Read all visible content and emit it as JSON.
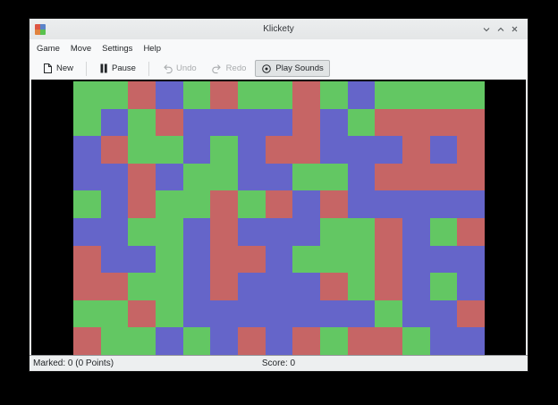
{
  "window": {
    "title": "Klickety"
  },
  "menubar": {
    "items": [
      {
        "label": "Game"
      },
      {
        "label": "Move"
      },
      {
        "label": "Settings"
      },
      {
        "label": "Help"
      }
    ]
  },
  "toolbar": {
    "buttons": [
      {
        "label": "New",
        "icon": "document-new-icon",
        "enabled": true,
        "toggled": false
      },
      {
        "label": "Pause",
        "icon": "pause-icon",
        "enabled": true,
        "toggled": false
      },
      {
        "label": "Undo",
        "icon": "undo-icon",
        "enabled": false,
        "toggled": false
      },
      {
        "label": "Redo",
        "icon": "redo-icon",
        "enabled": false,
        "toggled": false
      },
      {
        "label": "Play Sounds",
        "icon": "play-sounds-icon",
        "enabled": true,
        "toggled": true
      }
    ]
  },
  "statusbar": {
    "marked_label": "Marked: 0 (0 Points)",
    "score_label": "Score: 0"
  },
  "board": {
    "rows": 10,
    "cols": 15,
    "palette": {
      "R": "#c66565",
      "G": "#63c763",
      "B": "#6565c9"
    },
    "cells": [
      "GGRBGRGGRGBGGGG",
      "GBGRBBBBRBGRRRR",
      "BRGGBGBRRBBBRBR",
      "BBRBGGBBGGBRRRR",
      "GBRGGRGRBRBBBBB",
      "BBGGBRBBBGGRBGR",
      "RBBGBRRBGGGRBBB",
      "RRGGBRBBBRGRBGB",
      "GGRGBBBBBBBGBBR",
      "RGGBGBRBRGRRGBB"
    ]
  },
  "app_icon_colors": [
    "#dd5644",
    "#5b83c9",
    "#e0823d",
    "#58c14e"
  ]
}
